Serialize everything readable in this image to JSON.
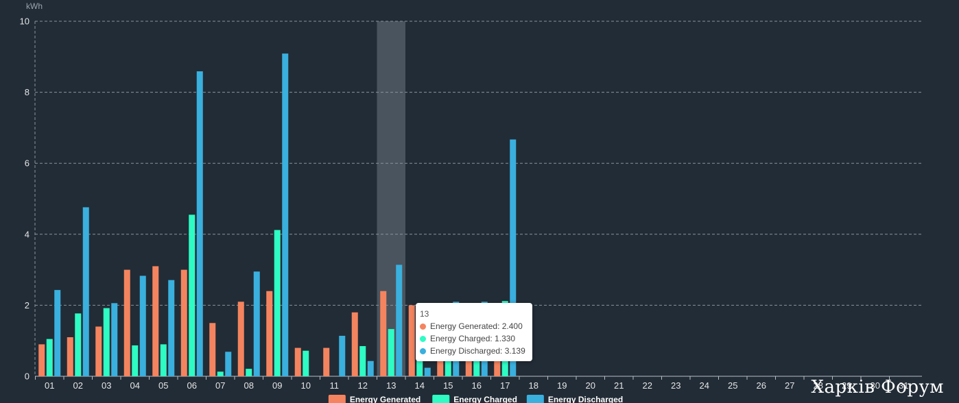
{
  "chart_data": {
    "type": "bar",
    "y_unit": "kWh",
    "ylim": [
      0,
      10
    ],
    "y_ticks": [
      "0",
      "2",
      "4",
      "6",
      "8",
      "10"
    ],
    "y_tick_values": [
      0,
      2,
      4,
      6,
      8,
      10
    ],
    "categories": [
      "01",
      "02",
      "03",
      "04",
      "05",
      "06",
      "07",
      "08",
      "09",
      "10",
      "11",
      "12",
      "13",
      "14",
      "15",
      "16",
      "17",
      "18",
      "19",
      "20",
      "21",
      "22",
      "23",
      "24",
      "25",
      "26",
      "27",
      "28",
      "29",
      "30",
      "31"
    ],
    "series": [
      {
        "name": "Energy Generated",
        "color": "#f4845f",
        "values": [
          0.9,
          1.1,
          1.4,
          3.0,
          3.1,
          3.0,
          1.5,
          2.1,
          2.4,
          0.8,
          0.8,
          1.8,
          2.4,
          2.0,
          1.6,
          1.3,
          1.0,
          null,
          null,
          null,
          null,
          null,
          null,
          null,
          null,
          null,
          null,
          null,
          null,
          null,
          null
        ]
      },
      {
        "name": "Energy Charged",
        "color": "#2efcc4",
        "values": [
          1.05,
          1.77,
          1.92,
          0.87,
          0.9,
          4.55,
          0.13,
          0.21,
          4.12,
          0.72,
          0,
          0.85,
          1.33,
          1.7,
          1.7,
          1.7,
          2.12,
          null,
          null,
          null,
          null,
          null,
          null,
          null,
          null,
          null,
          null,
          null,
          null,
          null,
          null
        ]
      },
      {
        "name": "Energy Discharged",
        "color": "#3ab0de",
        "values": [
          2.43,
          4.76,
          2.06,
          2.83,
          2.71,
          8.59,
          0.69,
          2.95,
          9.09,
          0,
          1.14,
          0.43,
          3.14,
          0.24,
          2.1,
          2.1,
          6.67,
          null,
          null,
          null,
          null,
          null,
          null,
          null,
          null,
          null,
          null,
          null,
          null,
          null,
          null
        ]
      }
    ],
    "highlighted_category": "13",
    "grid": true,
    "legend_position": "bottom-center",
    "tooltip": {
      "title": "13",
      "rows": [
        {
          "label": "Energy Generated: 2.400",
          "color": "#f4845f"
        },
        {
          "label": "Energy Charged: 1.330",
          "color": "#2efcc4"
        },
        {
          "label": "Energy Discharged: 3.139",
          "color": "#3ab0de"
        }
      ]
    }
  },
  "watermark": "Харків Форум"
}
